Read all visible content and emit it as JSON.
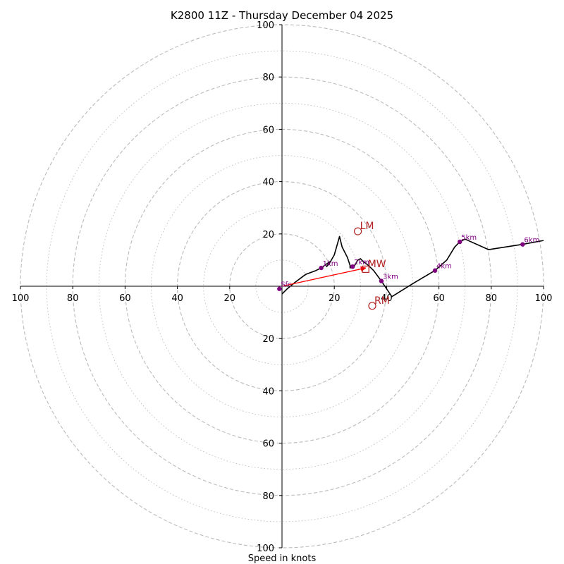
{
  "chart_data": {
    "type": "hodograph",
    "title": "K2800 11Z - Thursday December 04 2025",
    "xlabel": "Speed in knots",
    "units": "knots",
    "axis_range": [
      -100,
      100
    ],
    "major_rings": [
      20,
      40,
      60,
      80,
      100
    ],
    "minor_rings": [
      10,
      30,
      50,
      70,
      90
    ],
    "x_ticks": [
      {
        "value": -100,
        "label": "100"
      },
      {
        "value": -80,
        "label": "80"
      },
      {
        "value": -60,
        "label": "60"
      },
      {
        "value": -40,
        "label": "40"
      },
      {
        "value": -20,
        "label": "20"
      },
      {
        "value": 20,
        "label": "20"
      },
      {
        "value": 40,
        "label": "40"
      },
      {
        "value": 60,
        "label": "60"
      },
      {
        "value": 80,
        "label": "80"
      },
      {
        "value": 100,
        "label": "100"
      }
    ],
    "y_ticks": [
      {
        "value": 100,
        "label": "100"
      },
      {
        "value": 80,
        "label": "80"
      },
      {
        "value": 60,
        "label": "60"
      },
      {
        "value": 40,
        "label": "40"
      },
      {
        "value": 20,
        "label": "20"
      },
      {
        "value": -20,
        "label": "20"
      },
      {
        "value": -40,
        "label": "40"
      },
      {
        "value": -60,
        "label": "60"
      },
      {
        "value": -80,
        "label": "80"
      },
      {
        "value": -100,
        "label": "100"
      }
    ],
    "hodograph_line": [
      [
        0,
        -3
      ],
      [
        2,
        -1
      ],
      [
        5,
        1.5
      ],
      [
        9,
        4.5
      ],
      [
        13,
        6
      ],
      [
        15,
        7
      ],
      [
        17,
        8.5
      ],
      [
        18.5,
        9.5
      ],
      [
        17,
        7.5
      ],
      [
        18,
        8.5
      ],
      [
        20,
        12
      ],
      [
        22,
        19
      ],
      [
        23,
        15
      ],
      [
        25,
        11
      ],
      [
        26,
        8
      ],
      [
        26,
        7
      ],
      [
        27.5,
        7.5
      ],
      [
        29,
        10
      ],
      [
        30,
        10.5
      ],
      [
        31,
        9.5
      ],
      [
        33,
        8
      ],
      [
        35,
        6
      ],
      [
        38,
        2
      ],
      [
        40,
        -1
      ],
      [
        42,
        -4
      ],
      [
        50,
        1
      ],
      [
        58.5,
        6
      ],
      [
        63,
        10
      ],
      [
        66,
        15
      ],
      [
        68,
        17
      ],
      [
        70,
        18
      ],
      [
        79,
        14
      ],
      [
        92,
        16
      ],
      [
        100,
        17.5
      ]
    ],
    "height_markers": [
      {
        "label": "Sfc",
        "u": -1,
        "v": -1
      },
      {
        "label": "1km",
        "u": 15,
        "v": 7
      },
      {
        "label": "2km",
        "u": 27,
        "v": 7.5
      },
      {
        "label": "3km",
        "u": 38,
        "v": 2
      },
      {
        "label": "4km",
        "u": 58.5,
        "v": 6
      },
      {
        "label": "5km",
        "u": 68,
        "v": 17
      },
      {
        "label": "6km",
        "u": 92,
        "v": 16
      }
    ],
    "storm_motion": {
      "arrow_from": {
        "u": 0,
        "v": 0
      },
      "arrow_to": {
        "u": 32,
        "v": 7
      },
      "points": [
        {
          "label": "LM",
          "u": 29,
          "v": 21,
          "marker": "circle"
        },
        {
          "label": "MW",
          "u": 32,
          "v": 6.5,
          "marker": "square"
        },
        {
          "label": "RM",
          "u": 34.5,
          "v": -7.5,
          "marker": "circle"
        }
      ]
    },
    "colors": {
      "hodograph": "#000000",
      "markers": "#800080",
      "storm_motion": "#b22222",
      "arrow": "#ff0000",
      "grid": "#bbbbbb"
    }
  }
}
